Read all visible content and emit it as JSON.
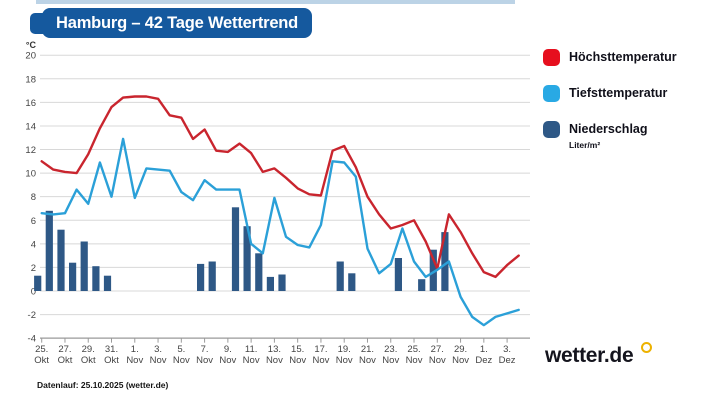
{
  "header": {
    "title": "Hamburg – 42 Tage Wettertrend",
    "accent_color": "#15599e"
  },
  "legend": {
    "items": [
      {
        "label": "Höchsttemperatur",
        "color": "#e60f1e"
      },
      {
        "label": "Tiefsttemperatur",
        "color": "#29a9e4"
      },
      {
        "label": "Niederschlag",
        "color": "#2e5886",
        "sublabel": "Liter/m²"
      }
    ]
  },
  "footer": {
    "datenlauf": "Datenlauf: 25.10.2025 (wetter.de)",
    "logo_text": "wetter.de",
    "logo_dot_color": "#edb200"
  },
  "chart_data": {
    "type": "line+bar",
    "title": "Hamburg – 42 Tage Wettertrend",
    "grid": true,
    "legend_position": "right",
    "y_axis": {
      "unit": "°C",
      "min": -4,
      "max": 20,
      "ticks": [
        20,
        18,
        16,
        14,
        12,
        10,
        8,
        6,
        4,
        2,
        0,
        -2,
        -4
      ]
    },
    "x_ticks": [
      {
        "day": "25.",
        "month": "Okt"
      },
      {
        "day": "27.",
        "month": "Okt"
      },
      {
        "day": "29.",
        "month": "Okt"
      },
      {
        "day": "31.",
        "month": "Okt"
      },
      {
        "day": "1.",
        "month": "Nov"
      },
      {
        "day": "3.",
        "month": "Nov"
      },
      {
        "day": "5.",
        "month": "Nov"
      },
      {
        "day": "7.",
        "month": "Nov"
      },
      {
        "day": "9.",
        "month": "Nov"
      },
      {
        "day": "11.",
        "month": "Nov"
      },
      {
        "day": "13.",
        "month": "Nov"
      },
      {
        "day": "15.",
        "month": "Nov"
      },
      {
        "day": "17.",
        "month": "Nov"
      },
      {
        "day": "19.",
        "month": "Nov"
      },
      {
        "day": "21.",
        "month": "Nov"
      },
      {
        "day": "23.",
        "month": "Nov"
      },
      {
        "day": "25.",
        "month": "Nov"
      },
      {
        "day": "27.",
        "month": "Nov"
      },
      {
        "day": "29.",
        "month": "Nov"
      },
      {
        "day": "1.",
        "month": "Dez"
      },
      {
        "day": "3.",
        "month": "Dez"
      }
    ],
    "series": [
      {
        "name": "Höchsttemperatur",
        "type": "line",
        "color": "#c9252e",
        "unit": "°C",
        "values": [
          11.0,
          10.3,
          10.1,
          10.0,
          11.6,
          13.8,
          15.6,
          16.4,
          16.5,
          16.5,
          16.3,
          14.9,
          14.7,
          12.9,
          13.7,
          11.9,
          11.8,
          12.5,
          11.7,
          10.1,
          10.4,
          9.6,
          8.7,
          8.2,
          8.1,
          11.9,
          12.3,
          10.5,
          8.0,
          6.5,
          5.3,
          5.6,
          6.0,
          4.2,
          1.9,
          6.5,
          5.0,
          3.2,
          1.6,
          1.2,
          2.2,
          3.0
        ]
      },
      {
        "name": "Tiefsttemperatur",
        "type": "line",
        "color": "#2ba0d8",
        "unit": "°C",
        "values": [
          6.6,
          6.5,
          6.6,
          8.6,
          7.4,
          10.9,
          8.0,
          12.9,
          7.9,
          10.4,
          10.3,
          10.2,
          8.4,
          7.7,
          9.4,
          8.6,
          8.6,
          8.6,
          4.0,
          3.2,
          7.9,
          4.6,
          3.9,
          3.7,
          5.6,
          11.0,
          10.9,
          9.7,
          3.6,
          1.5,
          2.3,
          5.3,
          2.5,
          1.2,
          1.8,
          2.5,
          -0.5,
          -2.2,
          -2.9,
          -2.2,
          -1.9,
          -1.6
        ]
      },
      {
        "name": "Niederschlag",
        "type": "bar",
        "color": "#2e5886",
        "unit": "Liter/m²",
        "values": [
          1.3,
          6.8,
          5.2,
          2.4,
          4.2,
          2.1,
          1.3,
          0,
          0,
          0,
          0,
          0,
          0,
          0,
          2.3,
          2.5,
          0,
          7.1,
          5.5,
          3.2,
          1.2,
          1.4,
          0,
          0,
          0,
          0,
          2.5,
          1.5,
          0,
          0,
          0,
          2.8,
          0,
          1.0,
          3.5,
          5.0,
          0,
          0,
          0,
          0,
          0,
          0
        ]
      }
    ]
  }
}
